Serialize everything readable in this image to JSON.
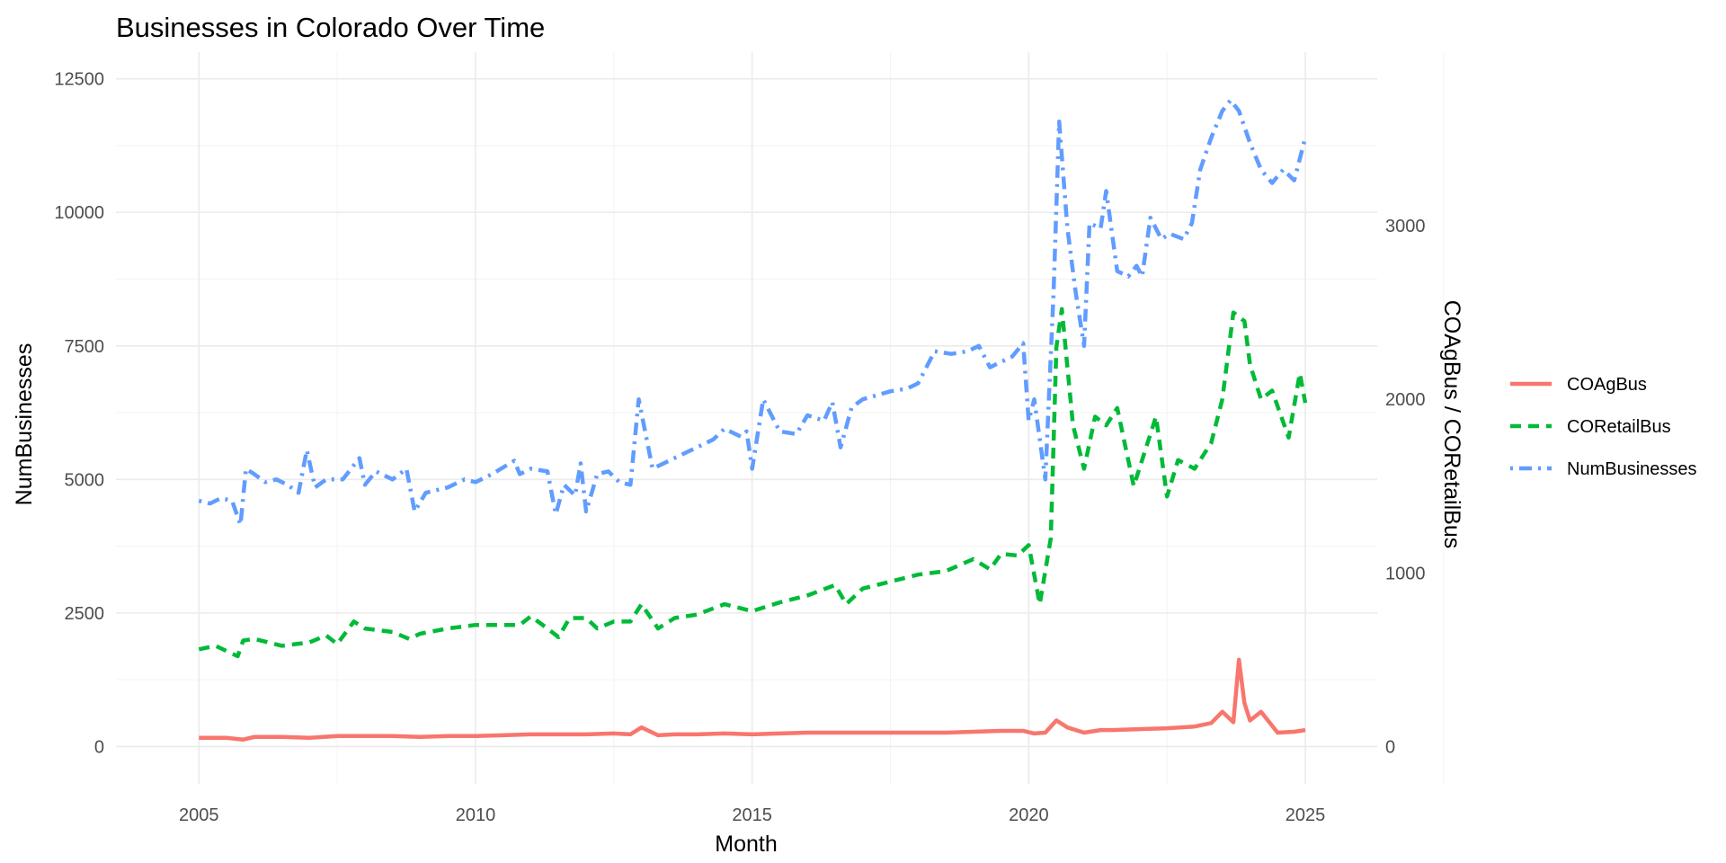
{
  "chart_data": {
    "type": "line",
    "title": "Businesses in Colorado Over Time",
    "xlabel": "Month",
    "ylabel": "NumBusinesses",
    "y2label": "COAgBus / CORetailBus",
    "xlim": [
      2003.5,
      2026.3
    ],
    "ylim": [
      -700,
      13000
    ],
    "y2lim": [
      -227.5,
      4225
    ],
    "y2_scale_factor": 3.25,
    "x_ticks": [
      2005,
      2010,
      2015,
      2020,
      2025
    ],
    "x_tick_labels": [
      "2005",
      "2010",
      "2015",
      "2020",
      "2025"
    ],
    "y_ticks": [
      0,
      2500,
      5000,
      7500,
      10000,
      12500
    ],
    "y_tick_labels": [
      "0",
      "2500",
      "5000",
      "7500",
      "10000",
      "12500"
    ],
    "y2_ticks": [
      0,
      1000,
      2000,
      3000
    ],
    "y2_tick_labels": [
      "0",
      "1000",
      "2000",
      "3000"
    ],
    "grid": true,
    "legend_position": "right",
    "series": [
      {
        "name": "COAgBus",
        "axis": "right",
        "color": "#F8766D",
        "dash": "solid",
        "x": [
          2005.0,
          2005.5,
          2005.8,
          2006.0,
          2006.5,
          2007.0,
          2007.5,
          2008.0,
          2008.5,
          2009.0,
          2009.5,
          2010.0,
          2010.5,
          2011.0,
          2011.5,
          2012.0,
          2012.5,
          2012.8,
          2013.0,
          2013.3,
          2013.6,
          2014.0,
          2014.5,
          2015.0,
          2015.5,
          2016.0,
          2016.5,
          2017.0,
          2017.5,
          2018.0,
          2018.5,
          2019.0,
          2019.5,
          2019.9,
          2020.1,
          2020.3,
          2020.5,
          2020.7,
          2021.0,
          2021.3,
          2021.5,
          2022.0,
          2022.5,
          2023.0,
          2023.3,
          2023.5,
          2023.7,
          2023.8,
          2023.9,
          2024.0,
          2024.2,
          2024.5,
          2024.8,
          2025.0
        ],
        "values": [
          50,
          50,
          40,
          55,
          55,
          50,
          60,
          60,
          60,
          55,
          60,
          60,
          65,
          70,
          70,
          70,
          75,
          70,
          110,
          65,
          70,
          70,
          75,
          70,
          75,
          80,
          80,
          80,
          80,
          80,
          80,
          85,
          90,
          90,
          75,
          80,
          150,
          110,
          80,
          95,
          95,
          100,
          105,
          115,
          135,
          200,
          140,
          500,
          250,
          150,
          200,
          80,
          85,
          95
        ]
      },
      {
        "name": "CORetailBus",
        "axis": "right",
        "color": "#00BA38",
        "dash": "dashed",
        "x": [
          2005.0,
          2005.3,
          2005.7,
          2005.8,
          2006.0,
          2006.5,
          2007.0,
          2007.3,
          2007.5,
          2007.8,
          2008.0,
          2008.5,
          2008.8,
          2009.0,
          2009.5,
          2010.0,
          2010.5,
          2010.8,
          2011.0,
          2011.3,
          2011.5,
          2011.7,
          2012.0,
          2012.2,
          2012.5,
          2012.8,
          2013.0,
          2013.3,
          2013.6,
          2014.0,
          2014.5,
          2015.0,
          2015.5,
          2016.0,
          2016.5,
          2016.7,
          2017.0,
          2017.5,
          2018.0,
          2018.5,
          2019.0,
          2019.3,
          2019.5,
          2019.8,
          2020.0,
          2020.2,
          2020.4,
          2020.5,
          2020.6,
          2020.8,
          2021.0,
          2021.2,
          2021.4,
          2021.6,
          2021.9,
          2022.0,
          2022.3,
          2022.5,
          2022.7,
          2023.0,
          2023.3,
          2023.5,
          2023.7,
          2023.9,
          2024.0,
          2024.2,
          2024.4,
          2024.7,
          2024.9,
          2025.0
        ],
        "values": [
          560,
          580,
          520,
          610,
          620,
          580,
          600,
          640,
          590,
          720,
          680,
          660,
          620,
          650,
          680,
          700,
          700,
          700,
          750,
          680,
          630,
          740,
          740,
          680,
          720,
          720,
          820,
          680,
          740,
          760,
          820,
          780,
          830,
          870,
          930,
          820,
          910,
          950,
          990,
          1010,
          1080,
          1020,
          1110,
          1100,
          1160,
          820,
          1200,
          2300,
          2520,
          1850,
          1600,
          1900,
          1850,
          1950,
          1500,
          1600,
          1900,
          1440,
          1650,
          1600,
          1750,
          2000,
          2500,
          2450,
          2200,
          2000,
          2050,
          1780,
          2150,
          1980
        ]
      },
      {
        "name": "NumBusinesses",
        "axis": "left",
        "color": "#619CFF",
        "dash": "dotdash",
        "x": [
          2005.0,
          2005.2,
          2005.4,
          2005.6,
          2005.75,
          2005.85,
          2006.0,
          2006.2,
          2006.4,
          2006.6,
          2006.8,
          2006.95,
          2007.1,
          2007.3,
          2007.6,
          2007.9,
          2008.0,
          2008.2,
          2008.5,
          2008.75,
          2008.9,
          2009.1,
          2009.5,
          2009.8,
          2010.0,
          2010.3,
          2010.7,
          2010.8,
          2011.0,
          2011.3,
          2011.45,
          2011.6,
          2011.8,
          2011.9,
          2012.0,
          2012.2,
          2012.4,
          2012.6,
          2012.8,
          2012.95,
          2013.2,
          2013.5,
          2013.8,
          2014.0,
          2014.3,
          2014.5,
          2014.8,
          2014.9,
          2015.0,
          2015.2,
          2015.5,
          2015.8,
          2016.0,
          2016.3,
          2016.45,
          2016.6,
          2016.8,
          2017.0,
          2017.5,
          2017.8,
          2018.0,
          2018.3,
          2018.6,
          2018.9,
          2019.1,
          2019.3,
          2019.5,
          2019.7,
          2019.9,
          2020.0,
          2020.1,
          2020.3,
          2020.45,
          2020.55,
          2020.7,
          2020.85,
          2021.0,
          2021.1,
          2021.3,
          2021.4,
          2021.6,
          2021.8,
          2021.95,
          2022.05,
          2022.2,
          2022.4,
          2022.55,
          2022.8,
          2022.95,
          2023.1,
          2023.3,
          2023.5,
          2023.65,
          2023.8,
          2024.0,
          2024.2,
          2024.4,
          2024.6,
          2024.8,
          2025.0
        ],
        "values": [
          4600,
          4550,
          4650,
          4600,
          4150,
          5200,
          5100,
          4950,
          5000,
          4900,
          4750,
          5550,
          4850,
          5000,
          5000,
          5400,
          4900,
          5150,
          5000,
          5200,
          4400,
          4750,
          4850,
          5000,
          4950,
          5100,
          5350,
          5100,
          5200,
          5150,
          4350,
          4900,
          4700,
          5300,
          4400,
          5100,
          5150,
          4950,
          4900,
          6500,
          5200,
          5350,
          5500,
          5600,
          5750,
          5950,
          5800,
          5900,
          5200,
          6500,
          5900,
          5850,
          6200,
          6100,
          6450,
          5600,
          6350,
          6500,
          6650,
          6700,
          6800,
          7400,
          7350,
          7400,
          7500,
          7100,
          7200,
          7300,
          7550,
          6100,
          6500,
          5000,
          8500,
          11700,
          9700,
          8500,
          7500,
          9800,
          9700,
          10400,
          8900,
          8800,
          9000,
          8800,
          9900,
          9500,
          9600,
          9500,
          9800,
          10800,
          11400,
          11900,
          12100,
          11900,
          11300,
          10800,
          10550,
          10800,
          10600,
          11400
        ]
      }
    ],
    "legend_entries": [
      "COAgBus",
      "CORetailBus",
      "NumBusinesses"
    ]
  }
}
